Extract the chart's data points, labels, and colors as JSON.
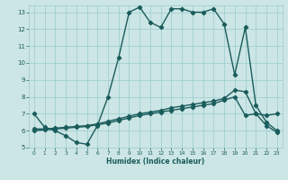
{
  "title": "",
  "xlabel": "Humidex (Indice chaleur)",
  "ylabel": "",
  "xlim": [
    -0.5,
    23.5
  ],
  "ylim": [
    5,
    13.4
  ],
  "xticks": [
    0,
    1,
    2,
    3,
    4,
    5,
    6,
    7,
    8,
    9,
    10,
    11,
    12,
    13,
    14,
    15,
    16,
    17,
    18,
    19,
    20,
    21,
    22,
    23
  ],
  "yticks": [
    5,
    6,
    7,
    8,
    9,
    10,
    11,
    12,
    13
  ],
  "bg_color": "#cce5e5",
  "grid_color": "#99cccc",
  "line_color": "#1a5c5c",
  "line_width": 1.0,
  "marker_size": 2.2,
  "line1_x": [
    0,
    1,
    2,
    3,
    4,
    5,
    6,
    7,
    8,
    9,
    10,
    11,
    12,
    13,
    14,
    15,
    16,
    17,
    18,
    19,
    20,
    21,
    22,
    23
  ],
  "line1_y": [
    7.0,
    6.2,
    6.0,
    5.7,
    5.3,
    5.2,
    6.3,
    8.0,
    10.3,
    13.0,
    13.3,
    12.4,
    12.1,
    13.2,
    13.2,
    13.0,
    13.0,
    13.2,
    12.3,
    9.3,
    12.1,
    7.5,
    6.5,
    6.0
  ],
  "line2_x": [
    0,
    1,
    2,
    3,
    4,
    5,
    6,
    7,
    8,
    9,
    10,
    11,
    12,
    13,
    14,
    15,
    16,
    17,
    18,
    19,
    20,
    21,
    22,
    23
  ],
  "line2_y": [
    6.1,
    6.1,
    6.15,
    6.2,
    6.25,
    6.3,
    6.4,
    6.55,
    6.7,
    6.85,
    7.0,
    7.1,
    7.2,
    7.35,
    7.45,
    7.55,
    7.65,
    7.75,
    7.9,
    8.4,
    8.3,
    7.0,
    6.3,
    5.9
  ],
  "line3_x": [
    0,
    1,
    2,
    3,
    4,
    5,
    6,
    7,
    8,
    9,
    10,
    11,
    12,
    13,
    14,
    15,
    16,
    17,
    18,
    19,
    20,
    21,
    22,
    23
  ],
  "line3_y": [
    6.0,
    6.05,
    6.1,
    6.15,
    6.2,
    6.25,
    6.35,
    6.45,
    6.6,
    6.75,
    6.9,
    7.0,
    7.1,
    7.2,
    7.3,
    7.4,
    7.5,
    7.6,
    7.8,
    8.0,
    6.9,
    7.0,
    6.9,
    7.0
  ]
}
